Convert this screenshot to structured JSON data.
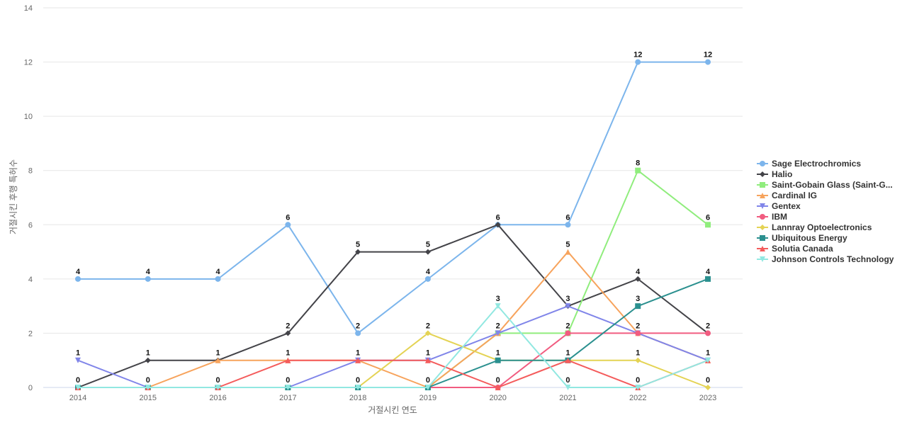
{
  "chart_data": {
    "type": "line",
    "title": "",
    "xlabel": "거절시킨 연도",
    "ylabel": "거절시킨 후행 특허수",
    "x": [
      "2014",
      "2015",
      "2016",
      "2017",
      "2018",
      "2019",
      "2020",
      "2021",
      "2022",
      "2023"
    ],
    "ylim": [
      0,
      14
    ],
    "yticks": [
      0,
      2,
      4,
      6,
      8,
      10,
      12,
      14
    ],
    "grid": true,
    "legend_position": "right",
    "series": [
      {
        "name": "Sage Electrochromics",
        "legend_label": "Sage Electrochromics",
        "color": "#7cb5ec",
        "marker": "circle",
        "values": [
          4,
          4,
          4,
          6,
          2,
          4,
          6,
          6,
          12,
          12
        ]
      },
      {
        "name": "Halio",
        "legend_label": "Halio",
        "color": "#434348",
        "marker": "diamond",
        "values": [
          0,
          1,
          1,
          2,
          5,
          5,
          6,
          3,
          4,
          2
        ]
      },
      {
        "name": "Saint-Gobain Glass (Saint-G...",
        "legend_label": "Saint-Gobain Glass (Saint-G...",
        "color": "#90ed7d",
        "marker": "square",
        "values": [
          0,
          0,
          0,
          0,
          0,
          0,
          2,
          2,
          8,
          6
        ]
      },
      {
        "name": "Cardinal IG",
        "legend_label": "Cardinal IG",
        "color": "#f7a35c",
        "marker": "triangle",
        "values": [
          0,
          0,
          1,
          1,
          1,
          0,
          2,
          5,
          2,
          1
        ]
      },
      {
        "name": "Gentex",
        "legend_label": "Gentex",
        "color": "#8085e9",
        "marker": "triangle-down",
        "values": [
          1,
          0,
          0,
          0,
          1,
          1,
          2,
          3,
          2,
          1
        ]
      },
      {
        "name": "IBM",
        "legend_label": "IBM",
        "color": "#f15c80",
        "marker": "circle",
        "values": [
          0,
          0,
          0,
          0,
          0,
          0,
          0,
          2,
          2,
          2
        ]
      },
      {
        "name": "Lannray Optoelectronics",
        "legend_label": "Lannray Optoelectronics",
        "color": "#e4d354",
        "marker": "diamond",
        "values": [
          0,
          0,
          0,
          0,
          0,
          2,
          1,
          1,
          1,
          0
        ]
      },
      {
        "name": "Ubiquitous Energy",
        "legend_label": "Ubiquitous Energy",
        "color": "#2b908f",
        "marker": "square",
        "values": [
          0,
          0,
          0,
          0,
          0,
          0,
          1,
          1,
          3,
          4
        ]
      },
      {
        "name": "Solutia Canada",
        "legend_label": "Solutia Canada",
        "color": "#f45b5b",
        "marker": "triangle",
        "values": [
          0,
          0,
          0,
          1,
          1,
          1,
          0,
          1,
          0,
          1
        ]
      },
      {
        "name": "Johnson Controls Technology",
        "legend_label": "Johnson Controls Technology",
        "color": "#91e8e1",
        "marker": "triangle-down",
        "values": [
          0,
          0,
          0,
          0,
          0,
          0,
          3,
          0,
          0,
          1
        ]
      }
    ],
    "data_labels": {
      "top": [
        4,
        4,
        4,
        6,
        5,
        5,
        6,
        6,
        12,
        12
      ],
      "bottom": [
        0,
        0,
        0,
        0,
        0,
        0,
        0,
        0,
        0,
        0
      ],
      "middle": [
        {
          "x": "2014",
          "value": 1
        },
        {
          "x": "2015",
          "value": 1
        },
        {
          "x": "2016",
          "value": 1
        },
        {
          "x": "2017",
          "value": 1
        },
        {
          "x": "2017",
          "value": 2
        },
        {
          "x": "2018",
          "value": 1
        },
        {
          "x": "2018",
          "value": 2
        },
        {
          "x": "2019",
          "value": 1
        },
        {
          "x": "2019",
          "value": 2
        },
        {
          "x": "2019",
          "value": 4
        },
        {
          "x": "2020",
          "value": 1
        },
        {
          "x": "2020",
          "value": 2
        },
        {
          "x": "2020",
          "value": 3
        },
        {
          "x": "2021",
          "value": 1
        },
        {
          "x": "2021",
          "value": 2
        },
        {
          "x": "2021",
          "value": 3
        },
        {
          "x": "2021",
          "value": 5
        },
        {
          "x": "2022",
          "value": 1
        },
        {
          "x": "2022",
          "value": 2
        },
        {
          "x": "2022",
          "value": 3
        },
        {
          "x": "2022",
          "value": 4
        },
        {
          "x": "2022",
          "value": 8
        },
        {
          "x": "2023",
          "value": 1
        },
        {
          "x": "2023",
          "value": 2
        },
        {
          "x": "2023",
          "value": 4
        },
        {
          "x": "2023",
          "value": 6
        }
      ]
    }
  }
}
